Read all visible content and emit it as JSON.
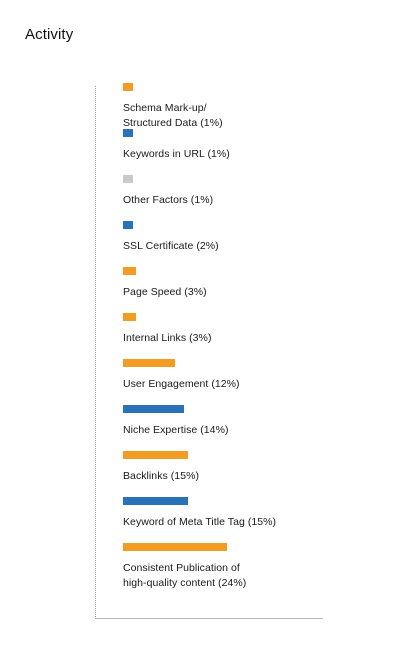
{
  "title": "Activity",
  "colors": {
    "orange": "#f39c24",
    "blue": "#2a72b8",
    "gray": "#c9c9c9"
  },
  "chart_data": {
    "type": "bar",
    "orientation": "horizontal",
    "categories": [
      "Schema Mark-up/\nStructured Data (1%)",
      "Keywords in URL (1%)",
      "Other Factors (1%)",
      "SSL Certificate (2%)",
      "Page Speed (3%)",
      "Internal Links (3%)",
      "User Engagement (12%)",
      "Niche Expertise (14%)",
      "Backlinks (15%)",
      "Keyword of Meta Title Tag (15%)",
      "Consistent Publication of\nhigh-quality content (24%)"
    ],
    "values": [
      1,
      1,
      1,
      2,
      3,
      3,
      12,
      14,
      15,
      15,
      24
    ],
    "bar_colors": [
      "orange",
      "blue",
      "gray",
      "blue",
      "orange",
      "orange",
      "orange",
      "blue",
      "orange",
      "blue",
      "orange"
    ],
    "xlim": [
      0,
      24
    ],
    "grid": false
  }
}
